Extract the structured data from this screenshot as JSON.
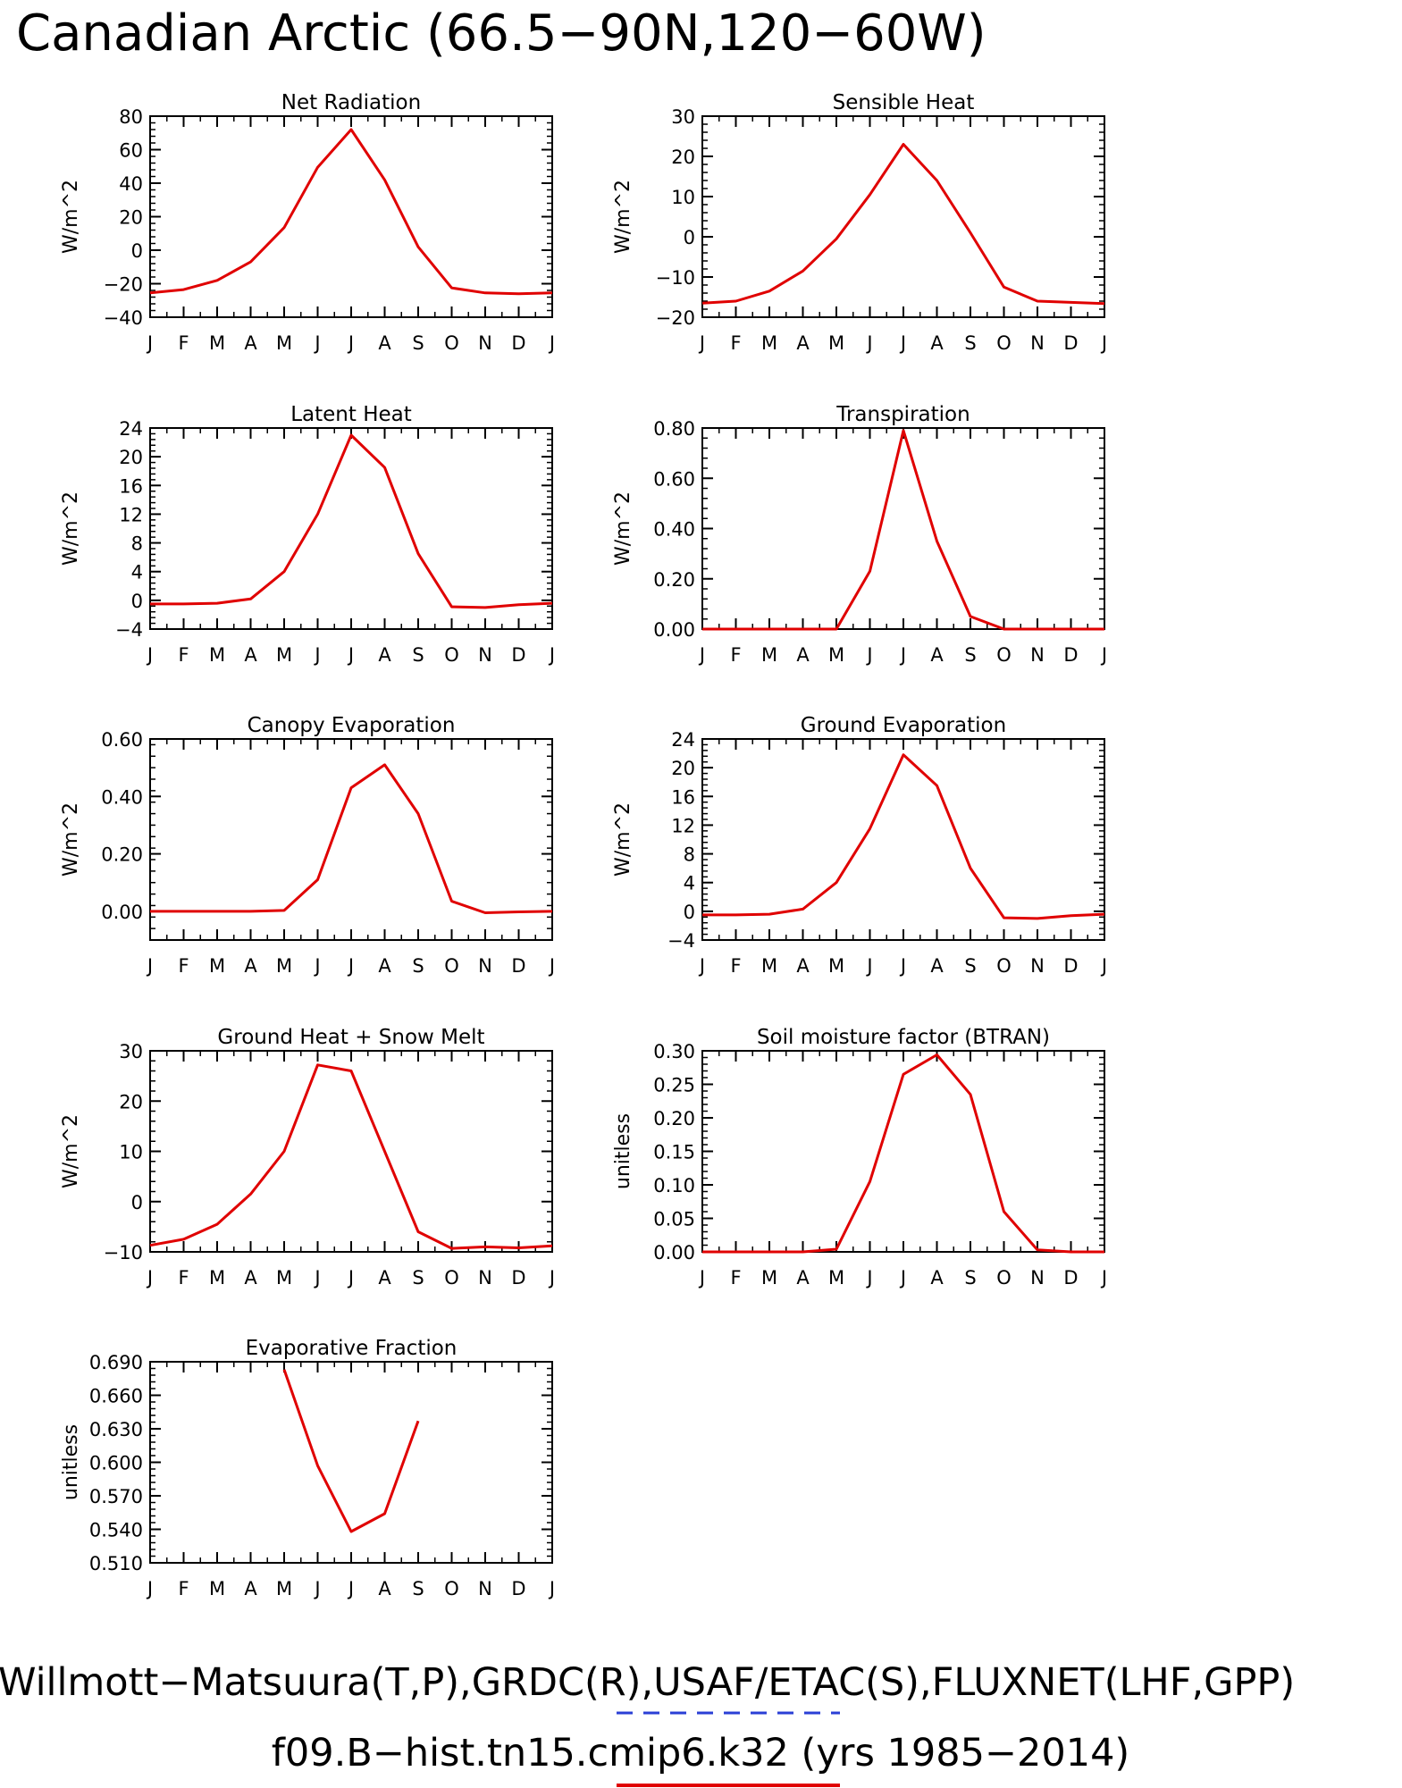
{
  "title": "Canadian Arctic (66.5−90N,120−60W)",
  "footer": {
    "line1": "Willmott−Matsuura(T,P),GRDC(R),USAF/ETAC(S),FLUXNET(LHF,GPP)",
    "line2": "f09.B−hist.tn15.cmip6.k32 (yrs 1985−2014)",
    "line1_legend_color": "#2a3fd6",
    "line2_legend_color": "#e00000"
  },
  "colors": {
    "series": "#e00000",
    "axes": "#000000"
  },
  "chart_data": [
    {
      "type": "line",
      "title": "Net Radiation",
      "ylabel": "W/m^2",
      "categories": [
        "J",
        "F",
        "M",
        "A",
        "M",
        "J",
        "J",
        "A",
        "S",
        "O",
        "N",
        "D",
        "J"
      ],
      "ylim": [
        -40,
        80
      ],
      "yticks": [
        -40,
        -20,
        0,
        20,
        40,
        60,
        80
      ],
      "ytick_labels": [
        "−40",
        "−20",
        "0",
        "20",
        "40",
        "60",
        "80"
      ],
      "series": [
        {
          "values": [
            -25.5,
            -23.5,
            -18,
            -7,
            13.5,
            49.5,
            72,
            42,
            2,
            -22.5,
            -25.5,
            -26,
            -25.5
          ]
        }
      ]
    },
    {
      "type": "line",
      "title": "Sensible Heat",
      "ylabel": "W/m^2",
      "categories": [
        "J",
        "F",
        "M",
        "A",
        "M",
        "J",
        "J",
        "A",
        "S",
        "O",
        "N",
        "D",
        "J"
      ],
      "ylim": [
        -20,
        30
      ],
      "yticks": [
        -20,
        -10,
        0,
        10,
        20,
        30
      ],
      "ytick_labels": [
        "−20",
        "−10",
        "0",
        "10",
        "20",
        "30"
      ],
      "series": [
        {
          "values": [
            -16.5,
            -16,
            -13.5,
            -8.5,
            -0.5,
            10.5,
            23,
            14,
            1,
            -12.5,
            -16,
            -16.3,
            -16.6
          ]
        }
      ]
    },
    {
      "type": "line",
      "title": "Latent Heat",
      "ylabel": "W/m^2",
      "categories": [
        "J",
        "F",
        "M",
        "A",
        "M",
        "J",
        "J",
        "A",
        "S",
        "O",
        "N",
        "D",
        "J"
      ],
      "ylim": [
        -4,
        24
      ],
      "yticks": [
        -4,
        0,
        4,
        8,
        12,
        16,
        20,
        24
      ],
      "ytick_labels": [
        "−4",
        "0",
        "4",
        "8",
        "12",
        "16",
        "20",
        "24"
      ],
      "series": [
        {
          "values": [
            -0.5,
            -0.5,
            -0.4,
            0.2,
            4,
            12,
            23,
            18.5,
            6.5,
            -0.9,
            -1,
            -0.6,
            -0.4
          ]
        }
      ]
    },
    {
      "type": "line",
      "title": "Transpiration",
      "ylabel": "W/m^2",
      "categories": [
        "J",
        "F",
        "M",
        "A",
        "M",
        "J",
        "J",
        "A",
        "S",
        "O",
        "N",
        "D",
        "J"
      ],
      "ylim": [
        0,
        0.8
      ],
      "yticks": [
        0,
        0.2,
        0.4,
        0.6,
        0.8
      ],
      "ytick_labels": [
        "0.00",
        "0.20",
        "0.40",
        "0.60",
        "0.80"
      ],
      "series": [
        {
          "values": [
            0,
            0,
            0,
            0,
            0,
            0.23,
            0.79,
            0.35,
            0.05,
            0,
            0,
            0,
            0
          ]
        }
      ]
    },
    {
      "type": "line",
      "title": "Canopy Evaporation",
      "ylabel": "W/m^2",
      "categories": [
        "J",
        "F",
        "M",
        "A",
        "M",
        "J",
        "J",
        "A",
        "S",
        "O",
        "N",
        "D",
        "J"
      ],
      "ylim": [
        -0.1,
        0.6
      ],
      "yticks": [
        0,
        0.2,
        0.4,
        0.6
      ],
      "ytick_labels": [
        "0.00",
        "0.20",
        "0.40",
        "0.60"
      ],
      "series": [
        {
          "values": [
            0,
            0,
            0,
            0,
            0.003,
            0.11,
            0.43,
            0.51,
            0.34,
            0.035,
            -0.005,
            -0.002,
            0
          ]
        }
      ]
    },
    {
      "type": "line",
      "title": "Ground Evaporation",
      "ylabel": "W/m^2",
      "categories": [
        "J",
        "F",
        "M",
        "A",
        "M",
        "J",
        "J",
        "A",
        "S",
        "O",
        "N",
        "D",
        "J"
      ],
      "ylim": [
        -4,
        24
      ],
      "yticks": [
        -4,
        0,
        4,
        8,
        12,
        16,
        20,
        24
      ],
      "ytick_labels": [
        "−4",
        "0",
        "4",
        "8",
        "12",
        "16",
        "20",
        "24"
      ],
      "series": [
        {
          "values": [
            -0.5,
            -0.5,
            -0.4,
            0.3,
            4,
            11.5,
            21.8,
            17.5,
            6,
            -0.9,
            -1,
            -0.6,
            -0.4
          ]
        }
      ]
    },
    {
      "type": "line",
      "title": "Ground Heat + Snow Melt",
      "ylabel": "W/m^2",
      "categories": [
        "J",
        "F",
        "M",
        "A",
        "M",
        "J",
        "J",
        "A",
        "S",
        "O",
        "N",
        "D",
        "J"
      ],
      "ylim": [
        -10,
        30
      ],
      "yticks": [
        -10,
        0,
        10,
        20,
        30
      ],
      "ytick_labels": [
        "−10",
        "0",
        "10",
        "20",
        "30"
      ],
      "series": [
        {
          "values": [
            -8.7,
            -7.5,
            -4.5,
            1.5,
            10,
            27.2,
            26,
            10,
            -6,
            -9.3,
            -9,
            -9.2,
            -8.8
          ]
        }
      ]
    },
    {
      "type": "line",
      "title": "Soil moisture factor (BTRAN)",
      "ylabel": "unitless",
      "categories": [
        "J",
        "F",
        "M",
        "A",
        "M",
        "J",
        "J",
        "A",
        "S",
        "O",
        "N",
        "D",
        "J"
      ],
      "ylim": [
        0,
        0.3
      ],
      "yticks": [
        0,
        0.05,
        0.1,
        0.15,
        0.2,
        0.25,
        0.3
      ],
      "ytick_labels": [
        "0.00",
        "0.05",
        "0.10",
        "0.15",
        "0.20",
        "0.25",
        "0.30"
      ],
      "series": [
        {
          "values": [
            0,
            0,
            0,
            0,
            0.004,
            0.105,
            0.265,
            0.294,
            0.235,
            0.06,
            0.003,
            0,
            0
          ]
        }
      ]
    },
    {
      "type": "line",
      "title": "Evaporative Fraction",
      "ylabel": "unitless",
      "categories": [
        "J",
        "F",
        "M",
        "A",
        "M",
        "J",
        "J",
        "A",
        "S",
        "O",
        "N",
        "D",
        "J"
      ],
      "ylim": [
        0.51,
        0.69
      ],
      "yticks": [
        0.51,
        0.54,
        0.57,
        0.6,
        0.63,
        0.66,
        0.69
      ],
      "ytick_labels": [
        "0.510",
        "0.540",
        "0.570",
        "0.600",
        "0.630",
        "0.660",
        "0.690"
      ],
      "series": [
        {
          "values": [
            null,
            null,
            null,
            null,
            0.683,
            0.597,
            0.538,
            0.554,
            0.637,
            null,
            null,
            null,
            null
          ]
        }
      ]
    }
  ]
}
